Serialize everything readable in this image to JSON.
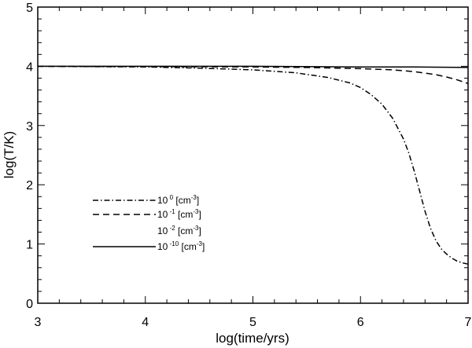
{
  "chart_data": {
    "type": "line",
    "title": "",
    "xlabel": "log(time/yrs)",
    "ylabel": "log(T/K)",
    "xlim": [
      3,
      7
    ],
    "ylim": [
      0,
      5
    ],
    "xticks": [
      "3",
      "4",
      "5",
      "6",
      "7"
    ],
    "yticks": [
      "0",
      "1",
      "2",
      "3",
      "4",
      "5"
    ],
    "grid": false,
    "legend_position": "left-middle",
    "legend": [
      {
        "base": "10",
        "exponent": "0",
        "unit_pre": "[cm",
        "unit_exp": "-3",
        "unit_post": "]",
        "style": "dash-dot"
      },
      {
        "base": "10",
        "exponent": "-1",
        "unit_pre": "[cm",
        "unit_exp": "-3",
        "unit_post": "]",
        "style": "dash"
      },
      {
        "base": "10",
        "exponent": "-2",
        "unit_pre": "[cm",
        "unit_exp": "-3",
        "unit_post": "]",
        "style": "none"
      },
      {
        "base": "10",
        "exponent": "-10",
        "unit_pre": "[cm",
        "unit_exp": "-3",
        "unit_post": "]",
        "style": "solid"
      }
    ],
    "series": [
      {
        "style": "dash-dot",
        "x": [
          3.0,
          4.0,
          4.5,
          5.0,
          5.4,
          5.7,
          5.9,
          6.0,
          6.1,
          6.2,
          6.3,
          6.4,
          6.45,
          6.5,
          6.55,
          6.6,
          6.65,
          6.7,
          6.75,
          6.8,
          6.85,
          6.9,
          6.95,
          7.0
        ],
        "y": [
          4.0,
          3.99,
          3.97,
          3.94,
          3.89,
          3.81,
          3.72,
          3.64,
          3.52,
          3.36,
          3.12,
          2.77,
          2.53,
          2.23,
          1.89,
          1.55,
          1.27,
          1.06,
          0.92,
          0.83,
          0.76,
          0.71,
          0.68,
          0.66
        ]
      },
      {
        "style": "dash",
        "x": [
          3.0,
          5.0,
          5.5,
          6.0,
          6.3,
          6.5,
          6.7,
          6.8,
          6.9,
          7.0
        ],
        "y": [
          4.0,
          3.99,
          3.98,
          3.96,
          3.94,
          3.91,
          3.86,
          3.82,
          3.77,
          3.71
        ]
      },
      {
        "style": "solid",
        "x": [
          3.0,
          5.0,
          6.0,
          6.5,
          7.0
        ],
        "y": [
          4.0,
          4.0,
          3.99,
          3.99,
          3.98
        ]
      }
    ]
  }
}
